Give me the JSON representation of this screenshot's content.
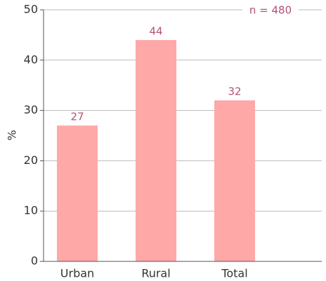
{
  "chart_data": {
    "type": "bar",
    "categories": [
      "Urban",
      "Rural",
      "Total"
    ],
    "values": [
      27,
      44,
      32
    ],
    "color": "#ffa8a8",
    "y_label": "%",
    "annotation": "n = 480",
    "ylim": [
      0,
      50
    ],
    "yticks": [
      0,
      10,
      20,
      30,
      40,
      50
    ],
    "grid": true
  }
}
